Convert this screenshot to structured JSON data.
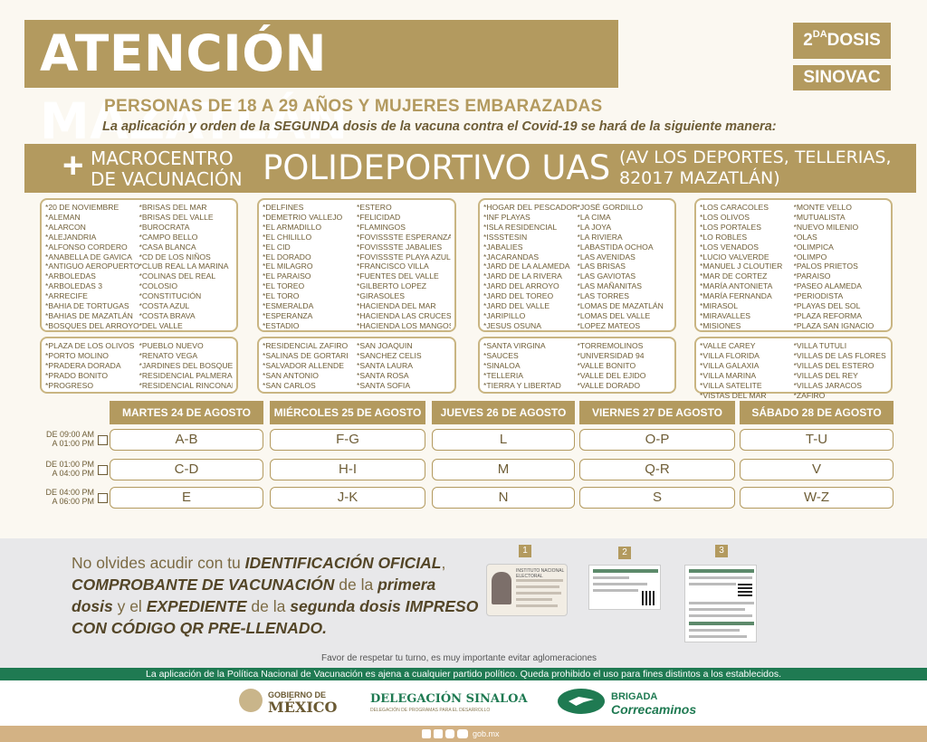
{
  "header": {
    "title": "ATENCIÓN MAZATLÁN",
    "dose_number": "2",
    "dose_suffix": "DA",
    "dose_word": "DOSIS",
    "vaccine": "SINOVAC",
    "subtitle": "PERSONAS DE 18 A 29 AÑOS Y MUJERES EMBARAZADAS",
    "intro_a": "La aplicación y orden de la ",
    "intro_b": "SEGUNDA",
    "intro_c": " dosis de la vacuna contra el Covid-19 se hará de la siguiente manera:"
  },
  "venue": {
    "plus": "+",
    "macro_line1": "MACROCENTRO",
    "macro_line2": "DE VACUNACIÓN",
    "name": "POLIDEPORTIVO UAS",
    "address_line1": "(AV LOS DEPORTES, TELLERIAS,",
    "address_line2": "82017 MAZATLÁN)"
  },
  "colonias": [
    [
      [
        "*20 DE NOVIEMBRE",
        "*ALEMAN",
        "*ALARCON",
        "*ALEJANDRIA",
        "*ALFONSO CORDERO",
        "*ANABELLA DE GAVICA",
        "*ANTIGUO AEROPUERTO",
        "*ARBOLEDAS",
        "*ARBOLEDAS 3",
        "*ARRECIFE",
        "*BAHIA DE TORTUGAS",
        "*BAHIAS DE MAZATLÁN",
        "*BOSQUES DEL ARROYO"
      ],
      [
        "*BRISAS DEL MAR",
        "*BRISAS DEL VALLE",
        "*BUROCRATA",
        "*CAMPO BELLO",
        "*CASA BLANCA",
        "*CD DE LOS NIÑOS",
        "*CLUB REAL LA MARINA",
        "*COLINAS DEL REAL",
        "*COLOSIO",
        "*CONSTITUCIÓN",
        "*COSTA AZUL",
        "*COSTA BRAVA",
        "*DEL VALLE"
      ]
    ],
    [
      [
        "*DELFINES",
        "*DEMETRIO VALLEJO",
        "*EL ARMADILLO",
        "*EL CHILILLO",
        "*EL CID",
        "*EL DORADO",
        "*EL MILAGRO",
        "*EL PARAISO",
        "*EL TOREO",
        "*EL TORO",
        "*ESMERALDA",
        "*ESPERANZA",
        "*ESTADIO"
      ],
      [
        "*ESTERO",
        "*FELICIDAD",
        "*FLAMINGOS",
        "*FOVISSSTE ESPERANZA",
        "*FOVISSSTE JABALIES",
        "*FOVISSSTE PLAYA AZUL",
        "*FRANCISCO VILLA",
        "*FUENTES DEL VALLE",
        "*GILBERTO LOPEZ",
        "*GIRASOLES",
        "*HACIENDA DEL MAR",
        "*HACIENDA LAS CRUCES",
        "*HACIENDA LOS MANGOS"
      ]
    ],
    [
      [
        "*HOGAR DEL PESCADOR",
        "*INF PLAYAS",
        "*ISLA RESIDENCIAL",
        "*ISSSTESIN",
        "*JABALIES",
        "*JACARANDAS",
        "*JARD DE LA ALAMEDA",
        "*JARD DE LA RIVERA",
        "*JARD DEL ARROYO",
        "*JARD DEL TOREO",
        "*JARD DEL VALLE",
        "*JARIPILLO",
        "*JESUS OSUNA"
      ],
      [
        "*JOSÉ GORDILLO",
        "*LA CIMA",
        "*LA JOYA",
        "*LA RIVIERA",
        "*LABASTIDA OCHOA",
        "*LAS AVENIDAS",
        "*LAS BRISAS",
        "*LAS GAVIOTAS",
        "*LAS MAÑANITAS",
        "*LAS TORRES",
        "*LOMAS DE MAZATLÁN",
        "*LOMAS DEL VALLE",
        "*LOPEZ MATEOS"
      ]
    ],
    [
      [
        "*LOS CARACOLES",
        "*LOS OLIVOS",
        "*LOS PORTALES",
        "*LO ROBLES",
        "*LOS VENADOS",
        "*LUCIO VALVERDE",
        "*MANUEL J CLOUTIER",
        "*MAR DE CORTEZ",
        "*MARÍA ANTONIETA",
        "*MARÍA FERNANDA",
        "*MIRASOL",
        "*MIRAVALLES",
        "*MISIONES"
      ],
      [
        "*MONTE VELLO",
        "*MUTUALISTA",
        "*NUEVO MILENIO",
        "*OLAS",
        "*OLIMPICA",
        "*OLIMPO",
        "*PALOS PRIETOS",
        "*PARAISO",
        "*PASEO ALAMEDA",
        "*PERIODISTA",
        "*PLAYAS DEL SOL",
        "*PLAZA REFORMA",
        "*PLAZA SAN IGNACIO"
      ]
    ],
    [
      [
        "*PLAZA DE LOS OLIVOS",
        "*PORTO MOLINO",
        "*PRADERA DORADA",
        "*PRADO BONITO",
        "*PROGRESO"
      ],
      [
        "*PUEBLO NUEVO",
        "*RENATO VEGA",
        "*JARDINES DEL BOSQUE",
        "*RESIDENCIAL PALMERAS",
        "*RESIDENCIAL RINCONADA"
      ]
    ],
    [
      [
        "*RESIDENCIAL ZAFIRO",
        "*SALINAS DE GORTARI",
        "*SALVADOR ALLENDE",
        "*SAN ANTONIO",
        "*SAN CARLOS"
      ],
      [
        "*SAN JOAQUIN",
        "*SANCHEZ CELIS",
        "*SANTA LAURA",
        "*SANTA ROSA",
        "*SANTA SOFIA"
      ]
    ],
    [
      [
        "*SANTA VIRGINA",
        "*SAUCES",
        "*SINALOA",
        "*TELLERIA",
        "*TIERRA Y LIBERTAD"
      ],
      [
        "*TORREMOLINOS",
        "*UNIVERSIDAD 94",
        "*VALLE BONITO",
        "*VALLE DEL EJIDO",
        "*VALLE DORADO"
      ]
    ],
    [
      [
        "*VALLE CAREY",
        "*VILLA FLORIDA",
        "*VILLA GALAXIA",
        "*VILLA MARINA",
        "*VILLA SATELITE",
        "*VISTAS DEL MAR"
      ],
      [
        "*VILLA TUTULI",
        "*VILLAS DE LAS FLORES",
        "*VILLAS DEL ESTERO",
        "*VILLAS DEL REY",
        "*VILLAS JARACOS",
        "*ZAFIRO"
      ]
    ]
  ],
  "schedule": {
    "days": [
      "MARTES 24 DE AGOSTO",
      "MIÉRCOLES 25 DE AGOSTO",
      "JUEVES 26 DE AGOSTO",
      "VIERNES 27 DE AGOSTO",
      "SÁBADO 28 DE AGOSTO"
    ],
    "slots": [
      {
        "from": "DE 09:00 AM",
        "to": "A 01:00 PM",
        "letters": [
          "A-B",
          "F-G",
          "L",
          "O-P",
          "T-U"
        ]
      },
      {
        "from": "DE 01:00 PM",
        "to": "A 04:00 PM",
        "letters": [
          "C-D",
          "H-I",
          "M",
          "Q-R",
          "V"
        ]
      },
      {
        "from": "DE 04:00 PM",
        "to": "A 06:00 PM",
        "letters": [
          "E",
          "J-K",
          "N",
          "S",
          "W-Z"
        ]
      }
    ]
  },
  "reminder": {
    "p1": "No olvides acudir con tu ",
    "b1": "IDENTIFICACIÓN OFICIAL",
    "p2": ", ",
    "b2": "COMPROBANTE DE VACUNACIÓN",
    "p3": " de la ",
    "b3": "primera dosis",
    "p4": " y el ",
    "b4": "EXPEDIENTE",
    "p5": " de la ",
    "b5": "segunda dosis IMPRESO CON CÓDIGO QR PRE-LLENADO.",
    "respect": "Favor de respetar tu turno, es muy importante evitar aglomeraciones",
    "steps": [
      "1",
      "2",
      "3"
    ],
    "id_card_text": "INSTITUTO NACIONAL ELECTORAL"
  },
  "footer": {
    "disclaimer": "La aplicación de la Política Nacional de Vacunación es ajena a cualquier partido político. Queda prohibido el uso para fines distintos a los establecidos.",
    "gob_line1": "GOBIERNO DE",
    "gob_line2": "MÉXICO",
    "delegacion": "DELEGACIÓN SINALOA",
    "delegacion_sub": "DELEGACIÓN DE PROGRAMAS PARA EL DESARROLLO",
    "brigada_line1": "BRIGADA",
    "brigada_line2": "Correcaminos",
    "site": "gob.mx"
  },
  "colors": {
    "gold": "#b39a5f",
    "green": "#1f7a52",
    "sand": "#d3b284"
  }
}
